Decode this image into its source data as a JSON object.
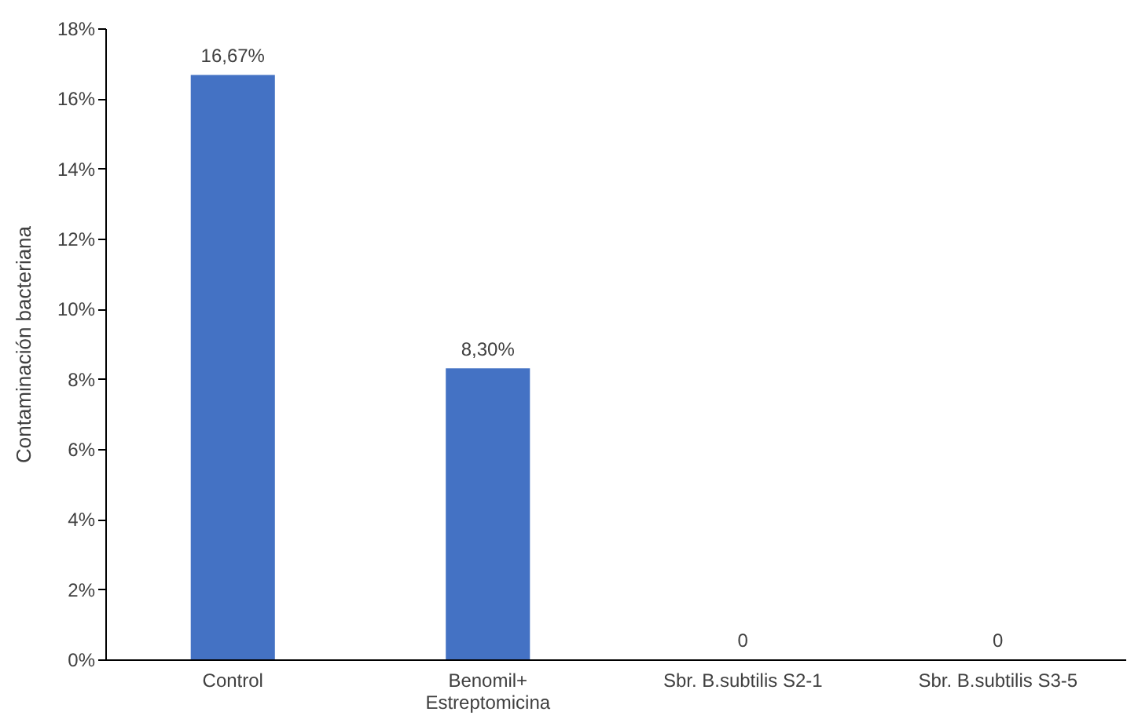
{
  "chart_data": {
    "type": "bar",
    "ylabel": "Contaminación bacteriana",
    "categories": [
      "Control",
      "Benomil+\nEstreptomicina",
      "Sbr. B.subtilis S2-1",
      "Sbr. B.subtilis S3-5"
    ],
    "values": [
      16.67,
      8.3,
      0,
      0
    ],
    "color": "#4472c4",
    "value_labels": [
      "16,67%",
      "8,30%",
      "0",
      "0"
    ],
    "ylim": [
      0,
      18
    ],
    "yticks": [
      {
        "value": 0,
        "label": "0%"
      },
      {
        "value": 2,
        "label": "2%"
      },
      {
        "value": 4,
        "label": "4%"
      },
      {
        "value": 6,
        "label": "6%"
      },
      {
        "value": 8,
        "label": "8%"
      },
      {
        "value": 10,
        "label": "10%"
      },
      {
        "value": 12,
        "label": "12%"
      },
      {
        "value": 14,
        "label": "14%"
      },
      {
        "value": 16,
        "label": "16%"
      },
      {
        "value": 18,
        "label": "18%"
      }
    ],
    "grid": false
  }
}
